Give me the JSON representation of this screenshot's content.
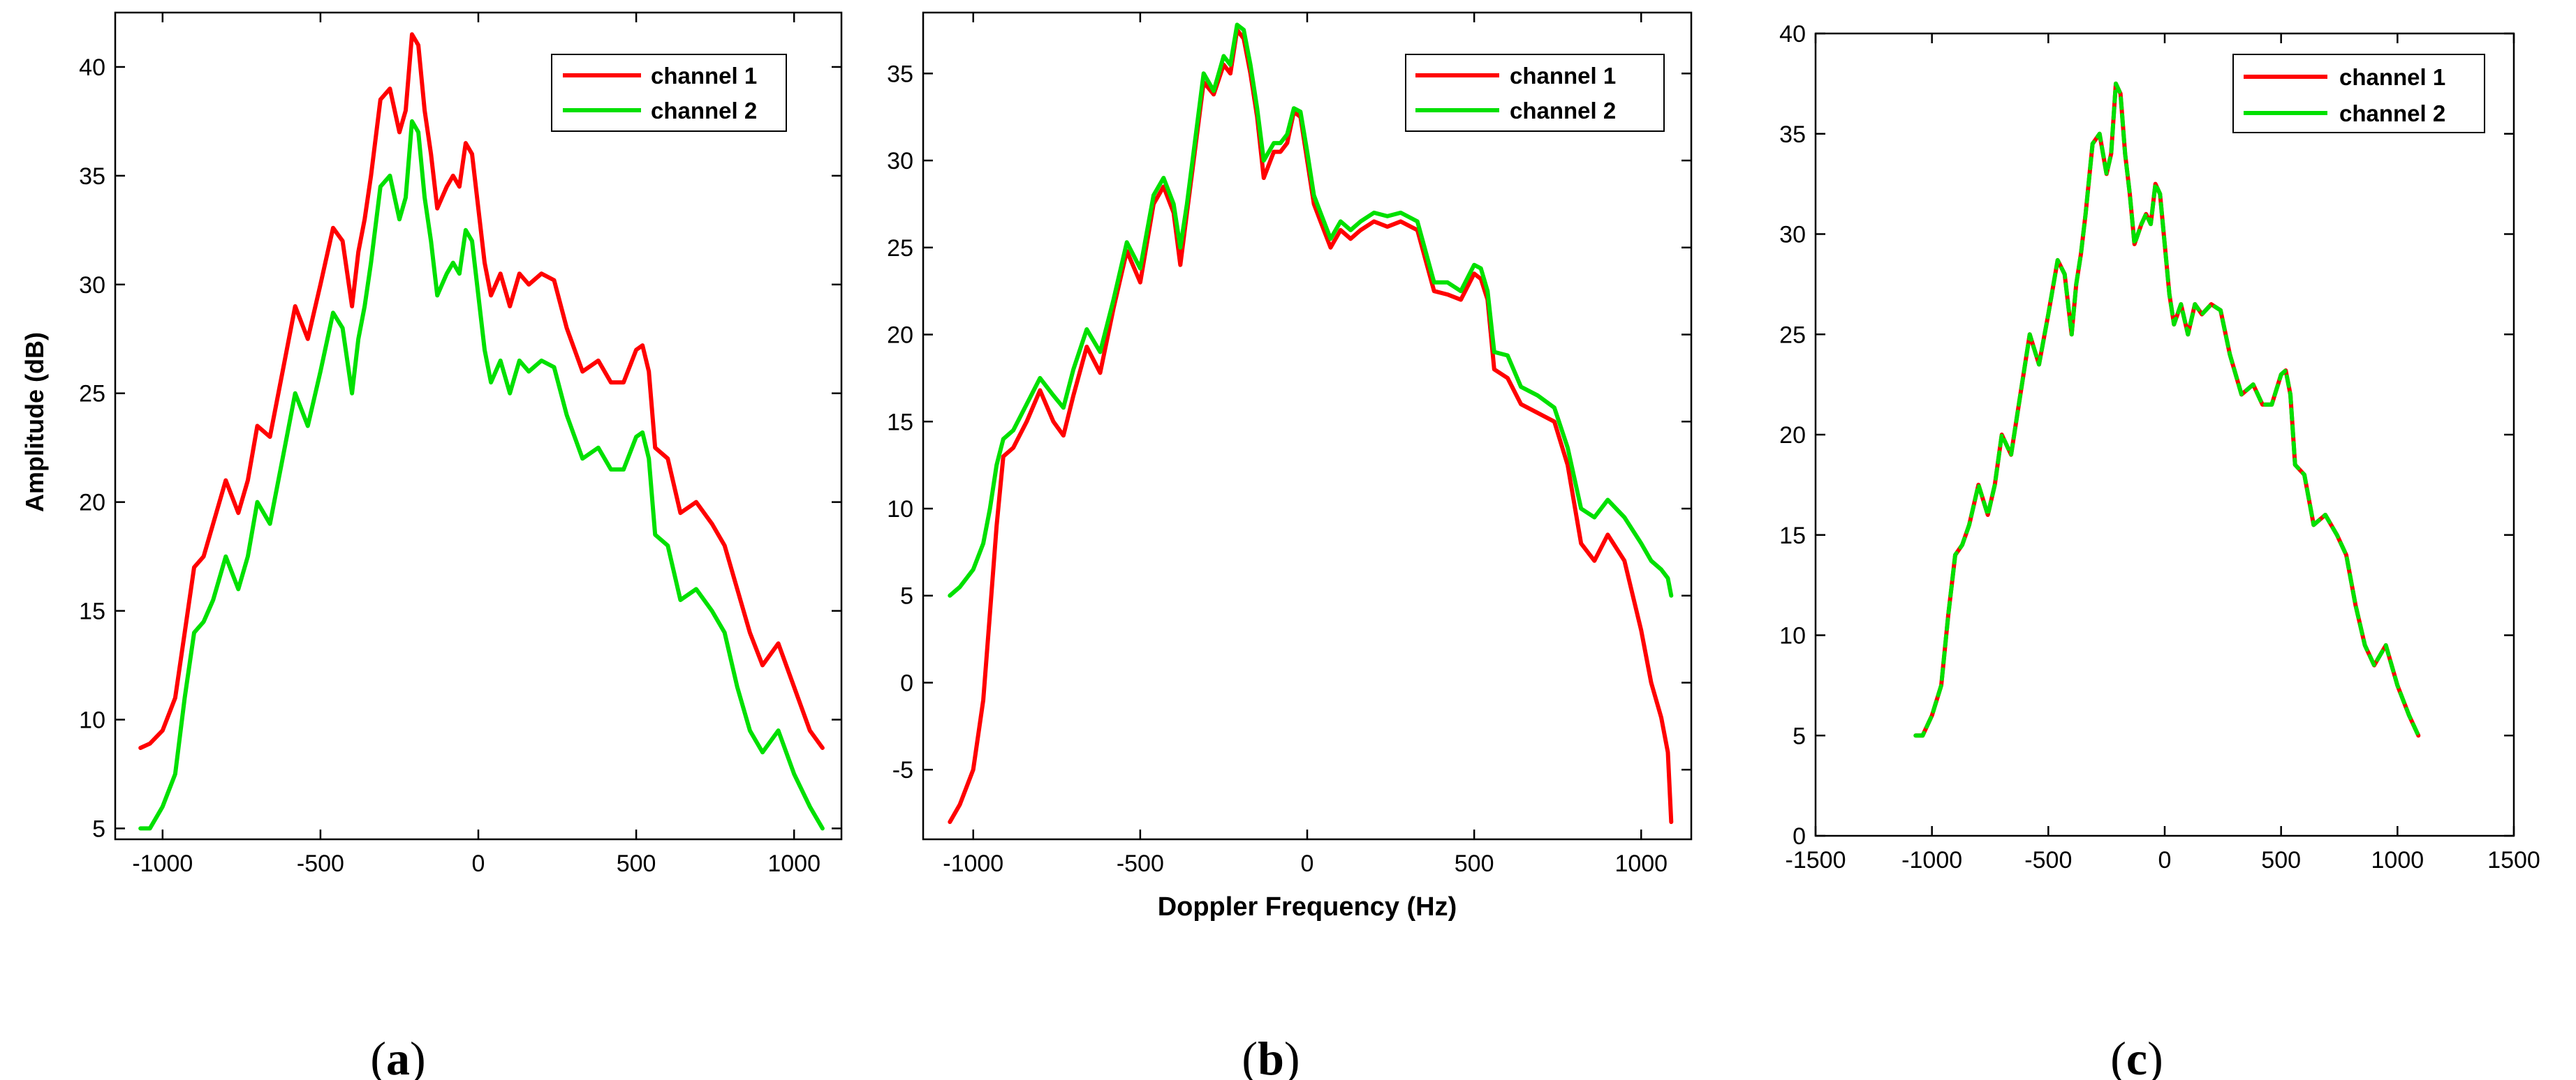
{
  "chart_data": [
    {
      "type": "line",
      "panel_label": "(a)",
      "panel_letter": "a",
      "title": "",
      "xlabel": "",
      "ylabel": "Amplitude (dB)",
      "xlim": [
        -1150,
        1150
      ],
      "ylim": [
        4.5,
        42.5
      ],
      "xticks": [
        -1000,
        -500,
        0,
        500,
        1000
      ],
      "yticks": [
        5,
        10,
        15,
        20,
        25,
        30,
        35,
        40
      ],
      "grid": false,
      "legend_position": "top-right",
      "series": [
        {
          "name": "channel 1",
          "color": "#ff0000",
          "x": [
            -1070,
            -1040,
            -1000,
            -960,
            -930,
            -900,
            -870,
            -840,
            -800,
            -760,
            -730,
            -700,
            -660,
            -620,
            -580,
            -540,
            -500,
            -460,
            -430,
            -400,
            -380,
            -360,
            -340,
            -310,
            -280,
            -250,
            -230,
            -210,
            -190,
            -170,
            -150,
            -130,
            -100,
            -80,
            -60,
            -40,
            -20,
            0,
            20,
            40,
            70,
            100,
            130,
            160,
            200,
            240,
            280,
            330,
            380,
            420,
            460,
            500,
            520,
            540,
            560,
            600,
            640,
            690,
            740,
            780,
            820,
            860,
            900,
            950,
            1000,
            1050,
            1090
          ],
          "y": [
            8.7,
            8.9,
            9.5,
            11,
            14,
            17,
            17.5,
            19,
            21,
            19.5,
            21,
            23.5,
            23,
            26,
            29,
            27.5,
            30,
            32.6,
            32,
            29,
            31.5,
            33,
            35,
            38.5,
            39,
            37,
            38,
            41.5,
            41,
            38,
            36,
            33.5,
            34.5,
            35,
            34.5,
            36.5,
            36,
            33.5,
            31,
            29.5,
            30.5,
            29,
            30.5,
            30,
            30.5,
            30.2,
            28,
            26,
            26.5,
            25.5,
            25.5,
            27,
            27.2,
            26,
            22.5,
            22,
            19.5,
            20,
            19,
            18,
            16,
            14,
            12.5,
            13.5,
            11.5,
            9.5,
            8.7
          ]
        },
        {
          "name": "channel 2",
          "color": "#00e000",
          "x": [
            -1070,
            -1040,
            -1000,
            -960,
            -930,
            -900,
            -870,
            -840,
            -800,
            -760,
            -730,
            -700,
            -660,
            -620,
            -580,
            -540,
            -500,
            -460,
            -430,
            -400,
            -380,
            -360,
            -340,
            -310,
            -280,
            -250,
            -230,
            -210,
            -190,
            -170,
            -150,
            -130,
            -100,
            -80,
            -60,
            -40,
            -20,
            0,
            20,
            40,
            70,
            100,
            130,
            160,
            200,
            240,
            280,
            330,
            380,
            420,
            460,
            500,
            520,
            540,
            560,
            600,
            640,
            690,
            740,
            780,
            820,
            860,
            900,
            950,
            1000,
            1050,
            1090
          ],
          "y": [
            5,
            5,
            6,
            7.5,
            11,
            14,
            14.5,
            15.5,
            17.5,
            16,
            17.5,
            20,
            19,
            22,
            25,
            23.5,
            26,
            28.7,
            28,
            25,
            27.5,
            29,
            31,
            34.5,
            35,
            33,
            34,
            37.5,
            37,
            34,
            32,
            29.5,
            30.5,
            31,
            30.5,
            32.5,
            32,
            29.5,
            27,
            25.5,
            26.5,
            25,
            26.5,
            26,
            26.5,
            26.2,
            24,
            22,
            22.5,
            21.5,
            21.5,
            23,
            23.2,
            22,
            18.5,
            18,
            15.5,
            16,
            15,
            14,
            11.5,
            9.5,
            8.5,
            9.5,
            7.5,
            6,
            5
          ]
        }
      ]
    },
    {
      "type": "line",
      "panel_label": "(b)",
      "panel_letter": "b",
      "title": "",
      "xlabel": "Doppler Frequency (Hz)",
      "ylabel": "",
      "xlim": [
        -1150,
        1150
      ],
      "ylim": [
        -9,
        38.5
      ],
      "xticks": [
        -1000,
        -500,
        0,
        500,
        1000
      ],
      "yticks": [
        -5,
        0,
        5,
        10,
        15,
        20,
        25,
        30,
        35
      ],
      "grid": false,
      "legend_position": "top-right",
      "series": [
        {
          "name": "channel 1",
          "color": "#ff0000",
          "x": [
            -1070,
            -1040,
            -1000,
            -970,
            -950,
            -930,
            -910,
            -880,
            -840,
            -800,
            -760,
            -730,
            -700,
            -660,
            -620,
            -580,
            -540,
            -500,
            -460,
            -430,
            -400,
            -380,
            -360,
            -340,
            -310,
            -280,
            -250,
            -230,
            -210,
            -190,
            -170,
            -150,
            -130,
            -100,
            -80,
            -60,
            -40,
            -20,
            0,
            20,
            40,
            70,
            100,
            130,
            160,
            200,
            240,
            280,
            330,
            380,
            420,
            460,
            500,
            520,
            540,
            560,
            600,
            640,
            690,
            740,
            780,
            820,
            860,
            900,
            950,
            1000,
            1030,
            1060,
            1080,
            1090
          ],
          "y": [
            -8,
            -7,
            -5,
            -1,
            4,
            9,
            13,
            13.5,
            15,
            16.8,
            15,
            14.2,
            16.5,
            19.3,
            17.8,
            21.5,
            24.8,
            23,
            27.5,
            28.5,
            27,
            24,
            27,
            30,
            34.5,
            33.8,
            35.5,
            35,
            37.5,
            37,
            35,
            32.5,
            29,
            30.5,
            30.5,
            31,
            32.8,
            32.5,
            30,
            27.5,
            26.5,
            25,
            26,
            25.5,
            26,
            26.5,
            26.2,
            26.5,
            26,
            22.5,
            22.3,
            22,
            23.5,
            23.2,
            22,
            18,
            17.5,
            16,
            15.5,
            15,
            12.5,
            8,
            7,
            8.5,
            7,
            3,
            0,
            -2,
            -4,
            -8
          ]
        },
        {
          "name": "channel 2",
          "color": "#00e000",
          "x": [
            -1070,
            -1040,
            -1000,
            -970,
            -950,
            -930,
            -910,
            -880,
            -840,
            -800,
            -760,
            -730,
            -700,
            -660,
            -620,
            -580,
            -540,
            -500,
            -460,
            -430,
            -400,
            -380,
            -360,
            -340,
            -310,
            -280,
            -250,
            -230,
            -210,
            -190,
            -170,
            -150,
            -130,
            -100,
            -80,
            -60,
            -40,
            -20,
            0,
            20,
            40,
            70,
            100,
            130,
            160,
            200,
            240,
            280,
            330,
            380,
            420,
            460,
            500,
            520,
            540,
            560,
            600,
            640,
            690,
            740,
            780,
            820,
            860,
            900,
            950,
            1000,
            1030,
            1060,
            1080,
            1090
          ],
          "y": [
            5,
            5.5,
            6.5,
            8,
            10,
            12.5,
            14,
            14.5,
            16,
            17.5,
            16.5,
            15.8,
            18,
            20.3,
            19,
            22,
            25.3,
            23.8,
            28,
            29,
            27.5,
            25,
            27.5,
            30.5,
            35,
            34,
            36,
            35.5,
            37.8,
            37.5,
            35.5,
            33,
            30,
            31,
            31,
            31.5,
            33,
            32.8,
            30.5,
            28,
            27,
            25.5,
            26.5,
            26,
            26.5,
            27,
            26.8,
            27,
            26.5,
            23,
            23,
            22.5,
            24,
            23.8,
            22.5,
            19,
            18.8,
            17,
            16.5,
            15.8,
            13.5,
            10,
            9.5,
            10.5,
            9.5,
            8,
            7,
            6.5,
            6,
            5
          ]
        }
      ]
    },
    {
      "type": "line",
      "panel_label": "(c)",
      "panel_letter": "c",
      "title": "",
      "xlabel": "",
      "ylabel": "",
      "xlim": [
        -1500,
        1500
      ],
      "ylim": [
        0,
        40
      ],
      "xticks": [
        -1500,
        -1000,
        -500,
        0,
        500,
        1000,
        1500
      ],
      "yticks": [
        0,
        5,
        10,
        15,
        20,
        25,
        30,
        35,
        40
      ],
      "grid": false,
      "legend_position": "top-right",
      "series": [
        {
          "name": "channel 1",
          "color": "#ff0000",
          "x": [
            -1070,
            -1040,
            -1000,
            -960,
            -930,
            -900,
            -870,
            -840,
            -800,
            -760,
            -730,
            -700,
            -660,
            -620,
            -580,
            -540,
            -500,
            -460,
            -430,
            -400,
            -380,
            -360,
            -340,
            -310,
            -280,
            -250,
            -230,
            -210,
            -190,
            -170,
            -150,
            -130,
            -100,
            -80,
            -60,
            -40,
            -20,
            0,
            20,
            40,
            70,
            100,
            130,
            160,
            200,
            240,
            280,
            330,
            380,
            420,
            460,
            500,
            520,
            540,
            560,
            600,
            640,
            690,
            740,
            780,
            820,
            860,
            900,
            950,
            1000,
            1050,
            1090
          ],
          "y": [
            5,
            5,
            6,
            7.5,
            11,
            14,
            14.5,
            15.5,
            17.5,
            16,
            17.5,
            20,
            19,
            22,
            25,
            23.5,
            26,
            28.7,
            28,
            25,
            27.5,
            29,
            31,
            34.5,
            35,
            33,
            34,
            37.5,
            37,
            34,
            32,
            29.5,
            30.5,
            31,
            30.5,
            32.5,
            32,
            29.5,
            27,
            25.5,
            26.5,
            25,
            26.5,
            26,
            26.5,
            26.2,
            24,
            22,
            22.5,
            21.5,
            21.5,
            23,
            23.2,
            22,
            18.5,
            18,
            15.5,
            16,
            15,
            14,
            11.5,
            9.5,
            8.5,
            9.5,
            7.5,
            6,
            5
          ]
        },
        {
          "name": "channel 2",
          "color": "#00e000",
          "x": [
            -1070,
            -1040,
            -1000,
            -960,
            -930,
            -900,
            -870,
            -840,
            -800,
            -760,
            -730,
            -700,
            -660,
            -620,
            -580,
            -540,
            -500,
            -460,
            -430,
            -400,
            -380,
            -360,
            -340,
            -310,
            -280,
            -250,
            -230,
            -210,
            -190,
            -170,
            -150,
            -130,
            -100,
            -80,
            -60,
            -40,
            -20,
            0,
            20,
            40,
            70,
            100,
            130,
            160,
            200,
            240,
            280,
            330,
            380,
            420,
            460,
            500,
            520,
            540,
            560,
            600,
            640,
            690,
            740,
            780,
            820,
            860,
            900,
            950,
            1000,
            1050,
            1090
          ],
          "y": [
            5,
            5,
            6,
            7.5,
            11,
            14,
            14.5,
            15.5,
            17.5,
            16,
            17.5,
            20,
            19,
            22,
            25,
            23.5,
            26,
            28.7,
            28,
            25,
            27.5,
            29,
            31,
            34.5,
            35,
            33,
            34,
            37.5,
            37,
            34,
            32,
            29.5,
            30.5,
            31,
            30.5,
            32.5,
            32,
            29.5,
            27,
            25.5,
            26.5,
            25,
            26.5,
            26,
            26.5,
            26.2,
            24,
            22,
            22.5,
            21.5,
            21.5,
            23,
            23.2,
            22,
            18.5,
            18,
            15.5,
            16,
            15,
            14,
            11.5,
            9.5,
            8.5,
            9.5,
            7.5,
            6,
            5
          ]
        }
      ]
    }
  ]
}
